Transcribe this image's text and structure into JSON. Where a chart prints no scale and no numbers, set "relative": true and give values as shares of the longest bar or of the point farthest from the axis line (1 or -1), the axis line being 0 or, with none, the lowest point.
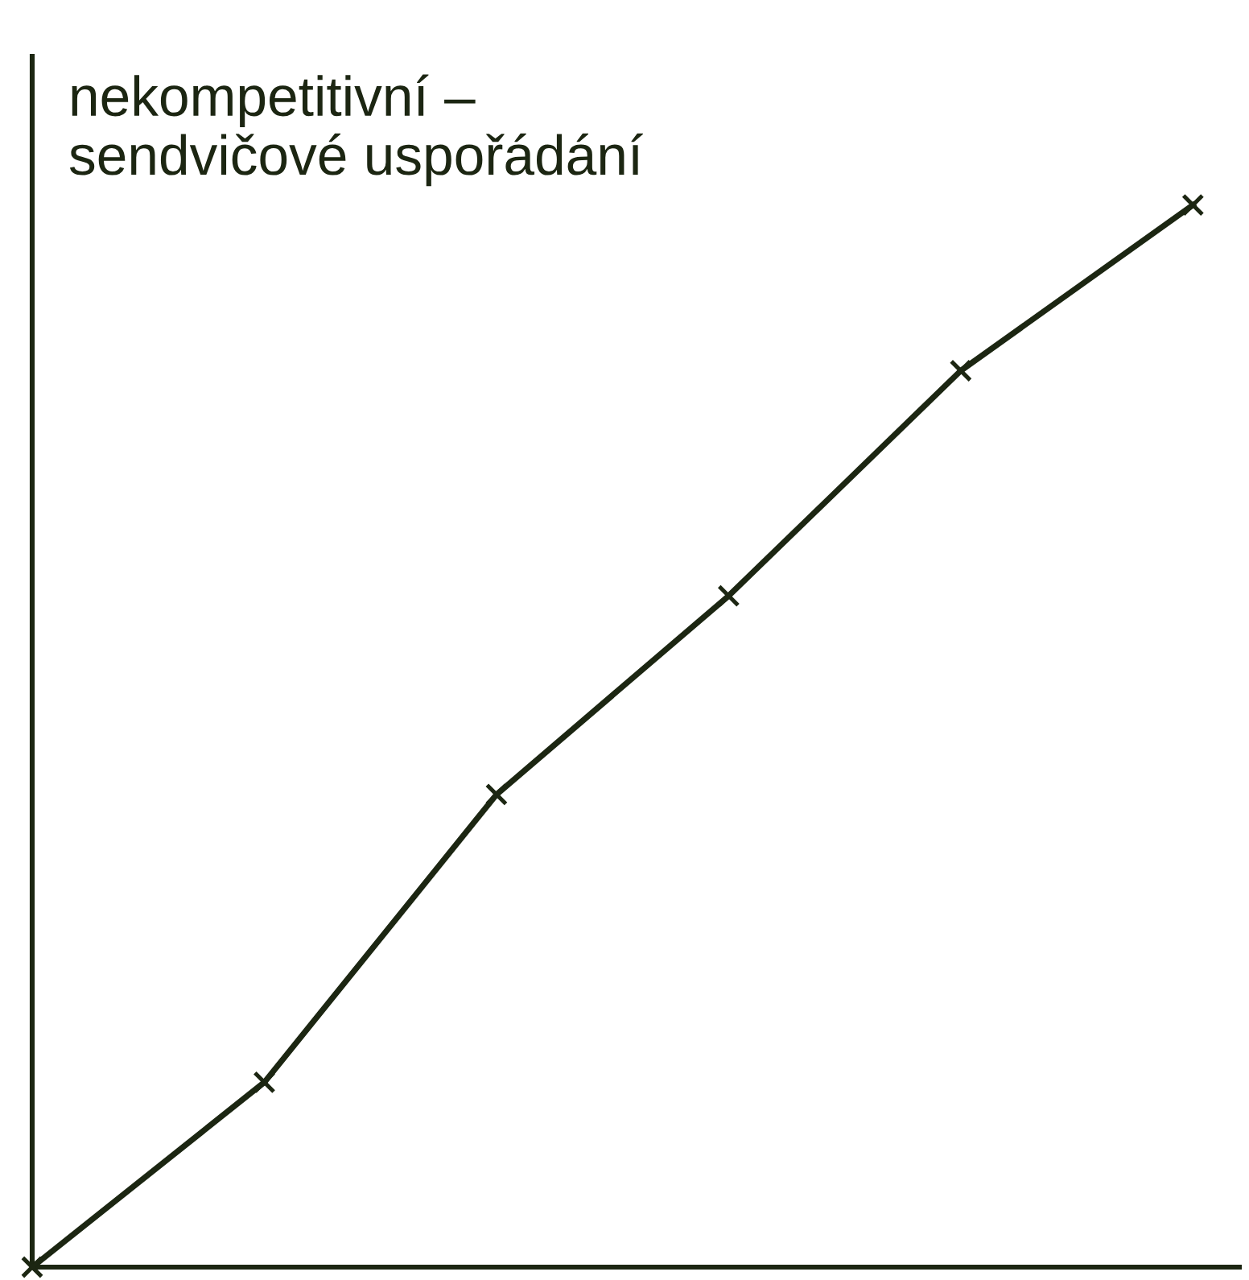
{
  "chart_data": {
    "type": "line",
    "title": "nekompetitivní –\nsendvičové uspořádání",
    "relative": true,
    "categories": [
      null,
      null,
      null,
      null,
      null,
      null
    ],
    "series": [
      {
        "color": "#1c2612",
        "values": [
          0,
          0.174,
          0.445,
          0.632,
          0.844,
          1.0
        ]
      }
    ],
    "marker": "cross",
    "line_style": "solid",
    "tick_labels": false
  }
}
